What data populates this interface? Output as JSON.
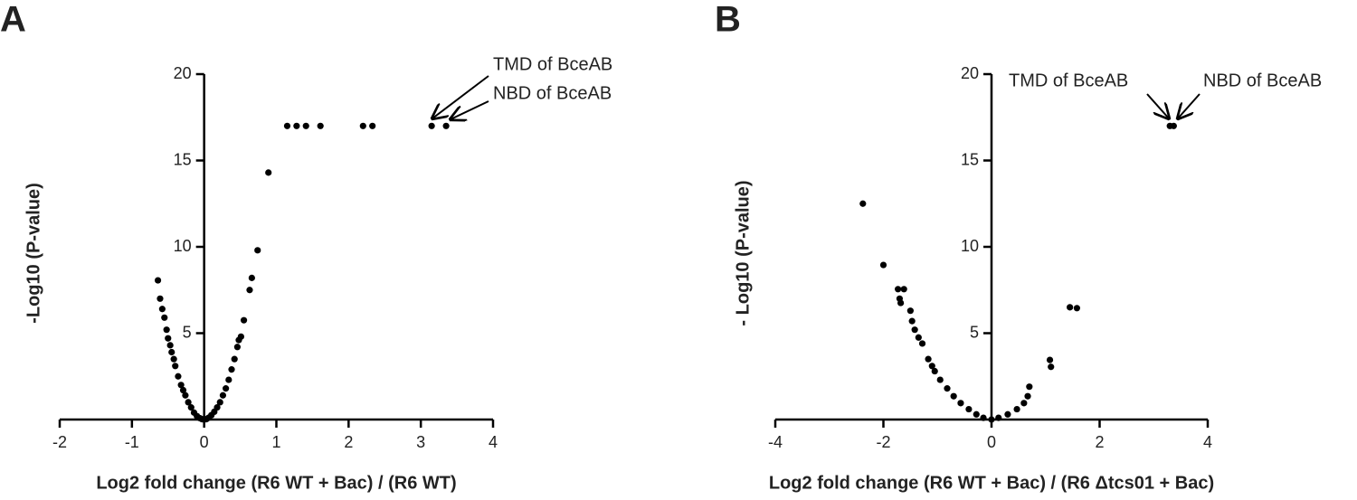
{
  "chart_data": [
    {
      "type": "scatter",
      "panel_label": "A",
      "xlabel": "Log2 fold change (R6 WT + Bac) / (R6 WT)",
      "ylabel": "-Log10 (P-value)",
      "color": "#000000",
      "x": [
        -0.64,
        -0.61,
        -0.58,
        -0.55,
        -0.52,
        -0.5,
        -0.47,
        -0.45,
        -0.42,
        -0.4,
        -0.36,
        -0.32,
        -0.29,
        -0.26,
        -0.22,
        -0.18,
        -0.14,
        -0.1,
        -0.06,
        -0.03,
        0,
        0.03,
        0.06,
        0.1,
        0.14,
        0.18,
        0.22,
        0.26,
        0.3,
        0.34,
        0.38,
        0.42,
        0.46,
        0.48,
        0.51,
        0.55,
        0.63,
        0.66,
        0.74,
        0.89,
        1.15,
        1.28,
        1.41,
        1.61,
        2.2,
        2.33,
        3.15,
        3.35
      ],
      "y": [
        8.06,
        7.0,
        6.4,
        5.9,
        5.2,
        4.7,
        4.3,
        3.9,
        3.5,
        3.1,
        2.5,
        2.0,
        1.7,
        1.4,
        1.0,
        0.7,
        0.4,
        0.2,
        0.08,
        0.02,
        0,
        0.02,
        0.1,
        0.25,
        0.45,
        0.7,
        1.0,
        1.4,
        1.8,
        2.3,
        2.9,
        3.5,
        4.2,
        4.6,
        4.8,
        5.75,
        7.5,
        8.2,
        9.8,
        14.3,
        17,
        17,
        17,
        17,
        17,
        17,
        17,
        17
      ],
      "xlim": [
        -2,
        4
      ],
      "ylim": [
        0,
        20
      ],
      "xticks": [
        -2,
        -1,
        0,
        1,
        2,
        3,
        4
      ],
      "yticks": [
        5,
        10,
        15,
        20
      ],
      "annotations": [
        "TMD of BceAB",
        "NBD of BceAB"
      ]
    },
    {
      "type": "scatter",
      "panel_label": "B",
      "xlabel": "Log2 fold change (R6 WT + Bac) / (R6 Δtcs01 + Bac)",
      "ylabel": "- Log10 (P-value)",
      "color": "#000000",
      "x": [
        3.3,
        3.37,
        1.45,
        1.58,
        1.08,
        1.1,
        -2.38,
        -2.0,
        -1.73,
        -1.62,
        -1.7,
        -1.68,
        -1.5,
        -1.47,
        -1.42,
        -1.35,
        -1.28,
        -1.17,
        -1.1,
        -1.05,
        -0.95,
        -0.82,
        -0.7,
        -0.57,
        -0.42,
        -0.28,
        -0.15,
        0,
        0.13,
        0.3,
        0.47,
        0.6,
        0.67,
        0.7
      ],
      "y": [
        17,
        17,
        6.5,
        6.45,
        3.45,
        3.05,
        12.5,
        8.95,
        7.55,
        7.55,
        7.0,
        6.75,
        6.3,
        5.7,
        5.2,
        4.75,
        4.4,
        3.5,
        3.1,
        2.8,
        2.3,
        1.8,
        1.35,
        0.95,
        0.6,
        0.3,
        0.1,
        0,
        0.1,
        0.3,
        0.6,
        0.95,
        1.35,
        1.9
      ],
      "xlim": [
        -4,
        4
      ],
      "ylim": [
        0,
        20
      ],
      "xticks": [
        -4,
        -2,
        0,
        2,
        4
      ],
      "yticks": [
        5,
        10,
        15,
        20
      ],
      "annotations": [
        "TMD of BceAB",
        "NBD of BceAB"
      ]
    }
  ]
}
